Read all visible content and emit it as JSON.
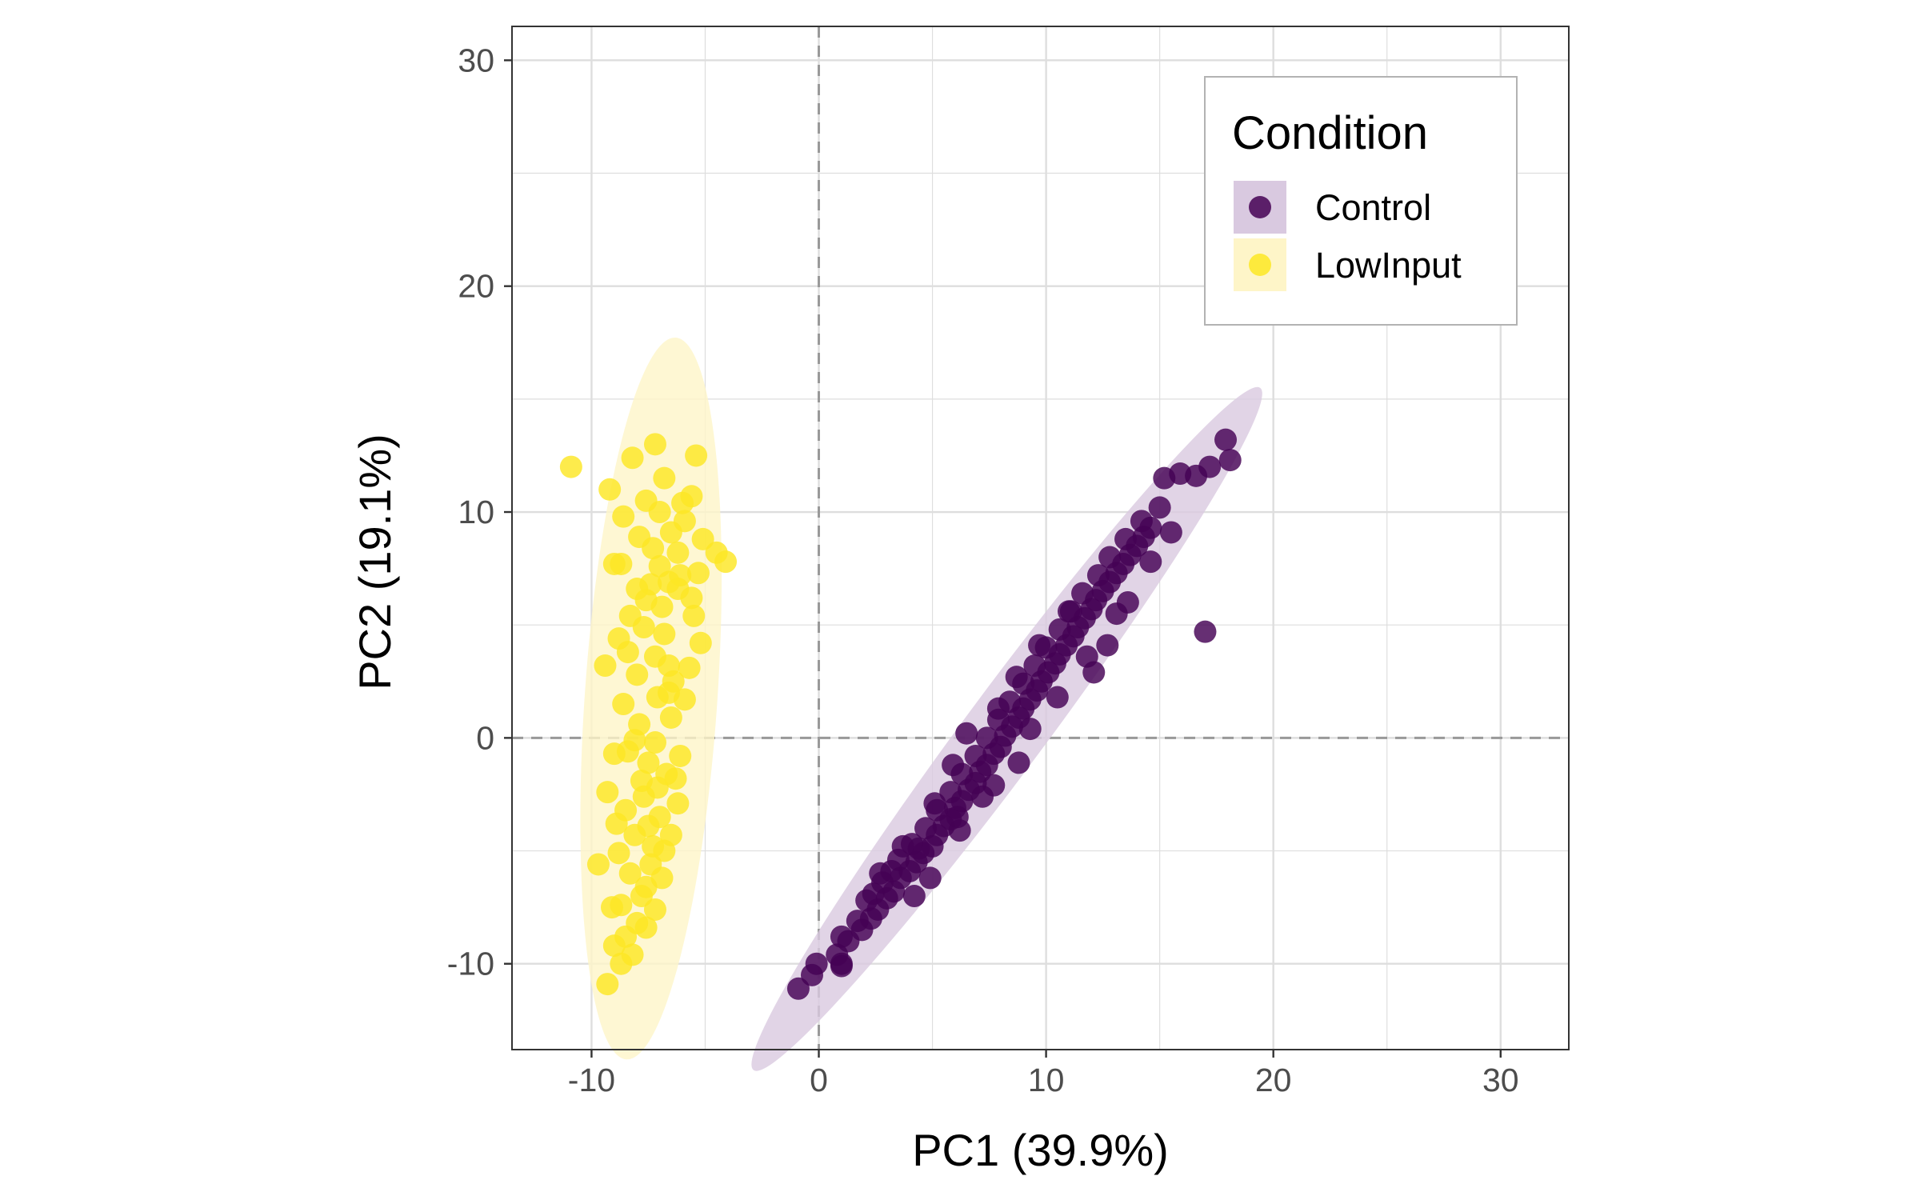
{
  "chart_data": {
    "type": "scatter",
    "title": "",
    "xlabel": "PC1 (39.9%)",
    "ylabel": "PC2 (19.1%)",
    "xlim": [
      -13.5,
      33
    ],
    "ylim": [
      -13.8,
      31.5
    ],
    "xticks": [
      -10,
      0,
      10,
      20,
      30
    ],
    "yticks": [
      -10,
      0,
      10,
      20,
      30
    ],
    "xtick_labels": [
      "-10",
      "0",
      "10",
      "20",
      "30"
    ],
    "ytick_labels": [
      "-10",
      "0",
      "10",
      "20",
      "30"
    ],
    "grid": true,
    "reference_lines": {
      "x": 0,
      "y": 0,
      "style": "dashed"
    },
    "legend": {
      "title": "Condition",
      "position": "top-right",
      "entries": [
        "Control",
        "LowInput"
      ]
    },
    "series": [
      {
        "name": "Control",
        "color": "#440154",
        "ellipse_fill": "#d9c9e0",
        "points": [
          [
            -0.9,
            -11.1
          ],
          [
            -0.3,
            -10.5
          ],
          [
            -0.1,
            -10.0
          ],
          [
            0.8,
            -9.6
          ],
          [
            1.3,
            -9.0
          ],
          [
            1.0,
            -8.8
          ],
          [
            1.9,
            -8.5
          ],
          [
            2.3,
            -8.0
          ],
          [
            1.0,
            -10.1
          ],
          [
            2.6,
            -7.6
          ],
          [
            2.1,
            -7.2
          ],
          [
            3.0,
            -7.1
          ],
          [
            3.3,
            -6.8
          ],
          [
            2.8,
            -6.4
          ],
          [
            3.6,
            -6.2
          ],
          [
            4.0,
            -5.9
          ],
          [
            3.5,
            -5.4
          ],
          [
            4.3,
            -5.5
          ],
          [
            4.6,
            -5.1
          ],
          [
            4.1,
            -4.7
          ],
          [
            5.0,
            -4.8
          ],
          [
            5.2,
            -4.3
          ],
          [
            4.7,
            -4.0
          ],
          [
            5.5,
            -3.9
          ],
          [
            5.8,
            -3.6
          ],
          [
            5.2,
            -3.2
          ],
          [
            6.0,
            -3.1
          ],
          [
            6.3,
            -2.8
          ],
          [
            5.8,
            -2.4
          ],
          [
            6.6,
            -2.3
          ],
          [
            6.9,
            -2.0
          ],
          [
            6.3,
            -1.6
          ],
          [
            7.1,
            -1.5
          ],
          [
            7.4,
            -1.2
          ],
          [
            6.9,
            -0.8
          ],
          [
            7.7,
            -0.7
          ],
          [
            8.0,
            -0.4
          ],
          [
            7.4,
            0.0
          ],
          [
            8.2,
            0.1
          ],
          [
            8.5,
            0.5
          ],
          [
            7.9,
            0.8
          ],
          [
            8.8,
            0.9
          ],
          [
            9.0,
            1.3
          ],
          [
            8.4,
            1.6
          ],
          [
            9.3,
            1.7
          ],
          [
            9.6,
            2.1
          ],
          [
            9.0,
            2.4
          ],
          [
            9.8,
            2.5
          ],
          [
            10.1,
            2.9
          ],
          [
            9.5,
            3.2
          ],
          [
            10.4,
            3.3
          ],
          [
            10.6,
            3.7
          ],
          [
            10.0,
            4.0
          ],
          [
            10.9,
            4.1
          ],
          [
            11.2,
            4.5
          ],
          [
            10.6,
            4.8
          ],
          [
            11.4,
            4.9
          ],
          [
            11.7,
            5.3
          ],
          [
            11.1,
            5.6
          ],
          [
            12.0,
            5.7
          ],
          [
            12.2,
            6.1
          ],
          [
            11.6,
            6.4
          ],
          [
            12.5,
            6.5
          ],
          [
            12.8,
            6.9
          ],
          [
            12.3,
            7.2
          ],
          [
            13.1,
            7.3
          ],
          [
            13.4,
            7.7
          ],
          [
            12.8,
            8.0
          ],
          [
            13.7,
            8.1
          ],
          [
            14.0,
            8.5
          ],
          [
            13.5,
            8.8
          ],
          [
            14.3,
            8.9
          ],
          [
            14.6,
            9.3
          ],
          [
            14.2,
            9.6
          ],
          [
            15.0,
            10.2
          ],
          [
            15.2,
            11.5
          ],
          [
            15.9,
            11.7
          ],
          [
            16.6,
            11.6
          ],
          [
            17.2,
            12.0
          ],
          [
            17.9,
            13.2
          ],
          [
            18.1,
            12.3
          ],
          [
            15.5,
            9.1
          ],
          [
            17.0,
            4.7
          ],
          [
            14.6,
            7.8
          ],
          [
            13.1,
            5.5
          ],
          [
            11.8,
            3.6
          ],
          [
            12.1,
            2.9
          ],
          [
            11.0,
            5.6
          ],
          [
            9.7,
            4.1
          ],
          [
            8.7,
            2.7
          ],
          [
            7.9,
            1.3
          ],
          [
            6.5,
            0.2
          ],
          [
            5.9,
            -1.2
          ],
          [
            8.8,
            -1.1
          ],
          [
            7.2,
            -2.6
          ],
          [
            5.1,
            -2.9
          ],
          [
            4.4,
            -4.9
          ],
          [
            3.2,
            -5.9
          ],
          [
            2.4,
            -6.9
          ],
          [
            1.7,
            -8.1
          ],
          [
            1.0,
            -10.0
          ],
          [
            3.7,
            -4.8
          ],
          [
            4.9,
            -6.2
          ],
          [
            6.2,
            -4.1
          ],
          [
            2.7,
            -6.0
          ],
          [
            7.7,
            -2.1
          ],
          [
            9.3,
            0.4
          ],
          [
            10.5,
            1.8
          ],
          [
            12.7,
            4.1
          ],
          [
            13.6,
            6.0
          ],
          [
            6.1,
            -3.5
          ],
          [
            4.2,
            -7.0
          ]
        ]
      },
      {
        "name": "LowInput",
        "color": "#fde725",
        "ellipse_fill": "#fef5c8",
        "points": [
          [
            -10.9,
            12.0
          ],
          [
            -9.2,
            11.0
          ],
          [
            -8.2,
            12.4
          ],
          [
            -7.2,
            13.0
          ],
          [
            -5.4,
            12.5
          ],
          [
            -6.8,
            11.5
          ],
          [
            -7.6,
            10.5
          ],
          [
            -6.0,
            10.4
          ],
          [
            -5.6,
            10.7
          ],
          [
            -9.0,
            7.7
          ],
          [
            -8.6,
            9.8
          ],
          [
            -7.9,
            8.9
          ],
          [
            -6.5,
            9.1
          ],
          [
            -5.1,
            8.8
          ],
          [
            -4.5,
            8.2
          ],
          [
            -4.1,
            7.8
          ],
          [
            -5.3,
            7.3
          ],
          [
            -6.2,
            8.2
          ],
          [
            -7.0,
            7.6
          ],
          [
            -8.7,
            7.7
          ],
          [
            -9.4,
            3.2
          ],
          [
            -8.8,
            4.4
          ],
          [
            -8.3,
            5.4
          ],
          [
            -7.6,
            6.1
          ],
          [
            -6.9,
            5.8
          ],
          [
            -6.2,
            6.6
          ],
          [
            -5.5,
            5.4
          ],
          [
            -5.2,
            4.2
          ],
          [
            -5.7,
            3.1
          ],
          [
            -6.4,
            2.5
          ],
          [
            -7.2,
            3.6
          ],
          [
            -8.0,
            2.8
          ],
          [
            -8.6,
            1.5
          ],
          [
            -7.9,
            0.6
          ],
          [
            -7.2,
            -0.2
          ],
          [
            -6.5,
            0.9
          ],
          [
            -5.9,
            1.7
          ],
          [
            -6.1,
            -0.8
          ],
          [
            -6.7,
            -1.6
          ],
          [
            -7.5,
            -1.1
          ],
          [
            -8.4,
            -0.6
          ],
          [
            -9.0,
            -0.7
          ],
          [
            -9.3,
            -2.4
          ],
          [
            -8.5,
            -3.2
          ],
          [
            -7.7,
            -2.6
          ],
          [
            -7.0,
            -3.5
          ],
          [
            -6.2,
            -2.9
          ],
          [
            -6.5,
            -4.3
          ],
          [
            -7.3,
            -4.8
          ],
          [
            -8.1,
            -4.3
          ],
          [
            -8.8,
            -5.1
          ],
          [
            -9.7,
            -5.6
          ],
          [
            -8.3,
            -6.0
          ],
          [
            -7.6,
            -6.6
          ],
          [
            -6.9,
            -6.2
          ],
          [
            -7.2,
            -7.6
          ],
          [
            -8.0,
            -8.2
          ],
          [
            -8.7,
            -7.4
          ],
          [
            -9.1,
            -7.5
          ],
          [
            -8.5,
            -8.8
          ],
          [
            -7.6,
            -8.4
          ],
          [
            -9.0,
            -9.2
          ],
          [
            -8.7,
            -10.0
          ],
          [
            -9.3,
            -10.9
          ],
          [
            -8.2,
            -9.6
          ],
          [
            -7.8,
            -7.0
          ],
          [
            -6.8,
            -5.0
          ],
          [
            -6.3,
            -1.8
          ],
          [
            -7.1,
            1.8
          ],
          [
            -6.8,
            4.6
          ],
          [
            -7.4,
            6.8
          ],
          [
            -6.1,
            7.2
          ],
          [
            -5.9,
            9.6
          ],
          [
            -7.0,
            10.0
          ],
          [
            -7.3,
            8.4
          ],
          [
            -8.0,
            6.6
          ],
          [
            -8.4,
            3.8
          ],
          [
            -6.6,
            3.2
          ],
          [
            -7.8,
            -1.9
          ],
          [
            -7.4,
            -5.6
          ],
          [
            -8.9,
            -3.8
          ],
          [
            -7.1,
            -2.2
          ],
          [
            -6.6,
            2.0
          ],
          [
            -5.6,
            6.2
          ],
          [
            -6.6,
            6.9
          ],
          [
            -7.7,
            4.9
          ],
          [
            -8.1,
            -0.1
          ],
          [
            -7.5,
            -3.9
          ]
        ]
      }
    ]
  }
}
